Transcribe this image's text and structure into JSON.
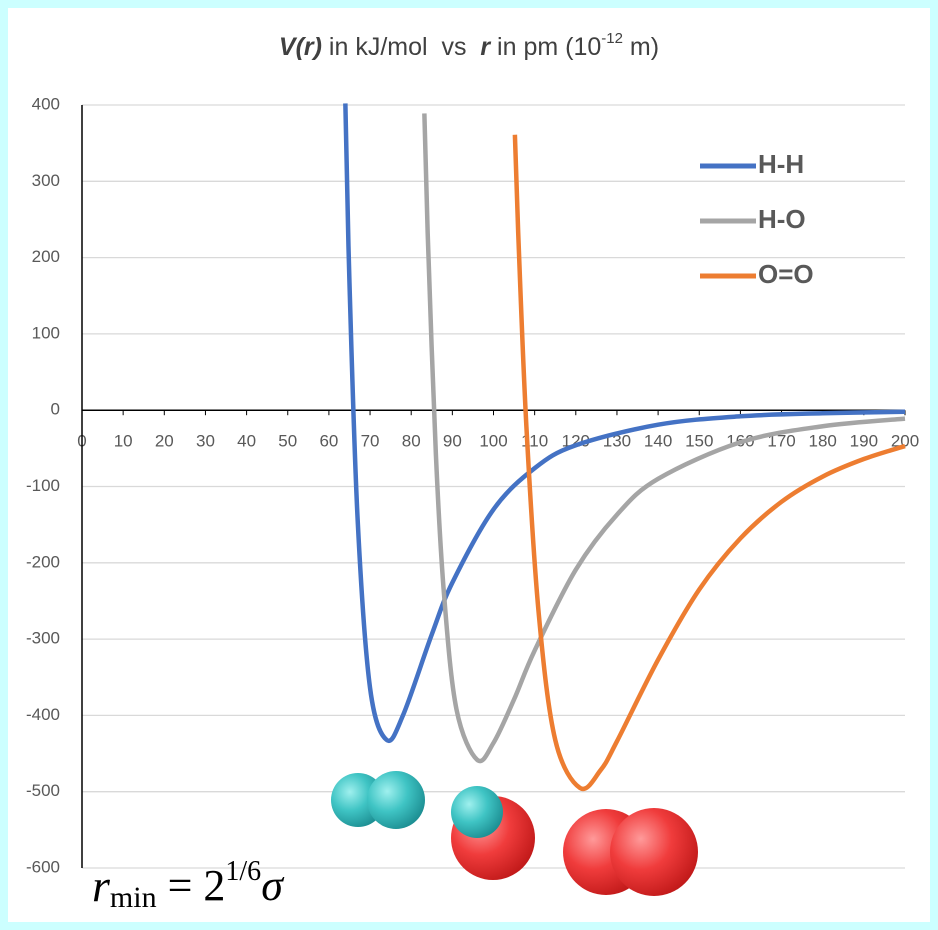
{
  "chart_data": {
    "type": "line",
    "title": [
      "V(r)",
      " in kJ/mol  vs  ",
      "r",
      " in pm (10",
      "-12",
      " m)"
    ],
    "annotation": [
      "r",
      "min",
      " = 2",
      "1/6",
      "σ"
    ],
    "xlim": [
      0,
      200
    ],
    "ylim": [
      -600,
      400
    ],
    "xticks": [
      0,
      10,
      20,
      30,
      40,
      50,
      60,
      70,
      80,
      90,
      100,
      110,
      120,
      130,
      140,
      150,
      160,
      170,
      180,
      190,
      200
    ],
    "yticks": [
      400,
      300,
      200,
      100,
      0,
      -100,
      -200,
      -300,
      -400,
      -500,
      -600
    ],
    "grid": true,
    "legend": "upper right",
    "series": [
      {
        "name": "H-H",
        "color": "#4472c4",
        "x": [
          64,
          65,
          67,
          70,
          74,
          78,
          85,
          90,
          100,
          110,
          120,
          140,
          160,
          180,
          200
        ],
        "values": [
          402,
          167,
          -145,
          -364,
          -432,
          -400,
          -294,
          -226,
          -130,
          -76,
          -46,
          -19,
          -8,
          -4,
          -2
        ]
      },
      {
        "name": "H-O",
        "color": "#a5a5a5",
        "x": [
          83.2,
          84,
          86,
          88,
          91,
          96,
          100,
          105,
          110,
          120,
          130,
          140,
          160,
          180,
          200
        ],
        "values": [
          389,
          233,
          -58,
          -243,
          -392,
          -458,
          -436,
          -379,
          -315,
          -209,
          -137,
          -90,
          -42,
          -21,
          -11
        ]
      },
      {
        "name": "O=O",
        "color": "#ed7d31",
        "x": [
          105.2,
          106,
          108,
          111,
          115,
          121,
          126,
          130,
          140,
          150,
          160,
          170,
          180,
          190,
          200
        ],
        "values": [
          361,
          233,
          -22,
          -267,
          -432,
          -495,
          -472,
          -434,
          -327,
          -235,
          -168,
          -120,
          -87,
          -64,
          -47
        ]
      }
    ]
  }
}
